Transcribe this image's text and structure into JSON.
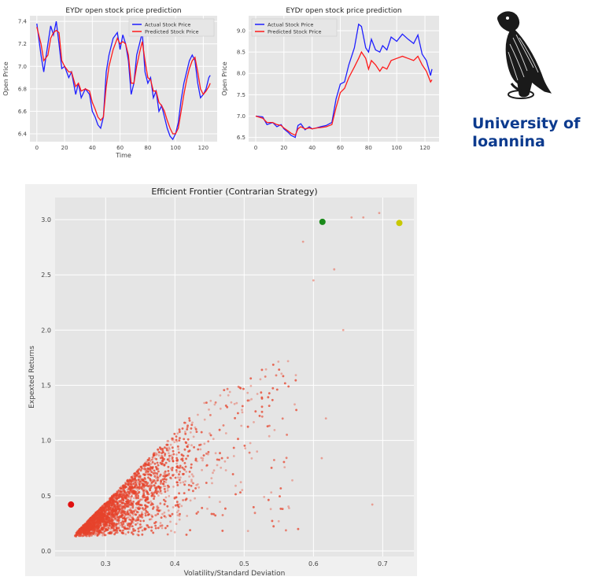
{
  "university": {
    "line1": "University of",
    "line2": "Ioannina",
    "logo_icon": "owl-on-branch-icon",
    "brand_color": "#0d3b8e"
  },
  "chart_data": [
    {
      "type": "line",
      "title": "EYDr open stock price prediction",
      "xlabel": "Time",
      "ylabel": "Open Price",
      "xlim": [
        -5,
        130
      ],
      "ylim": [
        6.33,
        7.45
      ],
      "xticks": [
        0,
        20,
        40,
        60,
        80,
        100,
        120
      ],
      "yticks": [
        6.4,
        6.6,
        6.8,
        7.0,
        7.2,
        7.4
      ],
      "ytick_labels": [
        "6.4",
        "6.6",
        "6.8",
        "7.0",
        "7.2",
        "7.4"
      ],
      "legend_position": "top-right",
      "grid": true,
      "series": [
        {
          "name": "Actual Stock Price",
          "color": "#1f1fff",
          "x": [
            0,
            3,
            5,
            8,
            10,
            12,
            14,
            16,
            18,
            20,
            23,
            25,
            28,
            30,
            32,
            35,
            38,
            40,
            42,
            44,
            46,
            48,
            50,
            52,
            55,
            58,
            60,
            62,
            64,
            66,
            68,
            70,
            72,
            74,
            76,
            78,
            80,
            82,
            84,
            86,
            88,
            90,
            92,
            94,
            96,
            98,
            100,
            102,
            104,
            106,
            108,
            110,
            112,
            114,
            116,
            118,
            120,
            122,
            124,
            125
          ],
          "y": [
            7.38,
            7.1,
            6.95,
            7.2,
            7.36,
            7.28,
            7.4,
            7.2,
            6.98,
            7.0,
            6.9,
            6.95,
            6.75,
            6.85,
            6.72,
            6.8,
            6.75,
            6.6,
            6.55,
            6.48,
            6.45,
            6.55,
            6.95,
            7.1,
            7.25,
            7.3,
            7.15,
            7.28,
            7.2,
            7.05,
            6.75,
            6.85,
            7.1,
            7.2,
            7.3,
            6.95,
            6.85,
            6.9,
            6.72,
            6.78,
            6.6,
            6.65,
            6.55,
            6.45,
            6.38,
            6.35,
            6.4,
            6.5,
            6.7,
            6.85,
            6.95,
            7.05,
            7.1,
            7.05,
            6.85,
            6.72,
            6.75,
            6.8,
            6.9,
            6.92
          ]
        },
        {
          "name": "Predicted Stock Price",
          "color": "#ff1a1a",
          "x": [
            0,
            3,
            5,
            8,
            10,
            12,
            14,
            16,
            18,
            20,
            23,
            25,
            28,
            30,
            32,
            35,
            38,
            40,
            42,
            44,
            46,
            48,
            50,
            52,
            55,
            58,
            60,
            62,
            64,
            66,
            68,
            70,
            72,
            74,
            76,
            78,
            80,
            82,
            84,
            86,
            88,
            90,
            92,
            94,
            96,
            98,
            100,
            102,
            104,
            106,
            108,
            110,
            112,
            114,
            116,
            118,
            120,
            122,
            124,
            125
          ],
          "y": [
            7.35,
            7.2,
            7.05,
            7.1,
            7.25,
            7.3,
            7.32,
            7.3,
            7.05,
            7.0,
            6.95,
            6.95,
            6.82,
            6.85,
            6.78,
            6.8,
            6.78,
            6.68,
            6.62,
            6.55,
            6.52,
            6.55,
            6.82,
            7.0,
            7.15,
            7.25,
            7.2,
            7.22,
            7.2,
            7.1,
            6.85,
            6.85,
            7.0,
            7.12,
            7.22,
            7.05,
            6.9,
            6.88,
            6.78,
            6.78,
            6.68,
            6.65,
            6.6,
            6.52,
            6.45,
            6.4,
            6.4,
            6.45,
            6.6,
            6.75,
            6.88,
            6.98,
            7.05,
            7.08,
            6.95,
            6.8,
            6.75,
            6.78,
            6.82,
            6.85
          ]
        }
      ]
    },
    {
      "type": "line",
      "title": "EYDr open stock price prediction",
      "xlabel": "",
      "ylabel": "Open Price",
      "xlim": [
        -5,
        130
      ],
      "ylim": [
        6.4,
        9.35
      ],
      "xticks": [
        0,
        20,
        40,
        60,
        80,
        100,
        120
      ],
      "yticks": [
        6.5,
        7.0,
        7.5,
        8.0,
        8.5,
        9.0
      ],
      "ytick_labels": [
        "6.5",
        "7.0",
        "7.5",
        "8.0",
        "8.5",
        "9.0"
      ],
      "legend_position": "top-left",
      "grid": true,
      "series": [
        {
          "name": "Actual Stock Price",
          "color": "#1f1fff",
          "x": [
            0,
            5,
            8,
            12,
            15,
            18,
            20,
            23,
            25,
            28,
            30,
            32,
            35,
            38,
            40,
            43,
            46,
            50,
            54,
            57,
            60,
            63,
            66,
            70,
            73,
            75,
            78,
            80,
            82,
            85,
            88,
            90,
            93,
            96,
            100,
            104,
            108,
            112,
            115,
            118,
            121,
            124,
            125
          ],
          "y": [
            7.0,
            6.98,
            6.8,
            6.85,
            6.75,
            6.8,
            6.7,
            6.62,
            6.55,
            6.5,
            6.78,
            6.82,
            6.68,
            6.75,
            6.7,
            6.72,
            6.75,
            6.78,
            6.85,
            7.4,
            7.75,
            7.8,
            8.2,
            8.6,
            9.15,
            9.1,
            8.6,
            8.5,
            8.8,
            8.55,
            8.5,
            8.65,
            8.55,
            8.85,
            8.75,
            8.92,
            8.8,
            8.7,
            8.9,
            8.45,
            8.3,
            7.95,
            8.1
          ]
        },
        {
          "name": "Predicted Stock Price",
          "color": "#ff1a1a",
          "x": [
            0,
            5,
            8,
            12,
            15,
            18,
            20,
            23,
            25,
            28,
            30,
            32,
            35,
            38,
            40,
            43,
            46,
            50,
            54,
            57,
            60,
            63,
            66,
            70,
            73,
            75,
            78,
            80,
            82,
            85,
            88,
            90,
            93,
            96,
            100,
            104,
            108,
            112,
            115,
            118,
            121,
            124,
            125
          ],
          "y": [
            7.0,
            6.95,
            6.85,
            6.85,
            6.8,
            6.78,
            6.72,
            6.65,
            6.6,
            6.55,
            6.7,
            6.75,
            6.7,
            6.72,
            6.7,
            6.72,
            6.73,
            6.75,
            6.8,
            7.2,
            7.55,
            7.65,
            7.9,
            8.15,
            8.35,
            8.5,
            8.35,
            8.1,
            8.3,
            8.2,
            8.05,
            8.15,
            8.1,
            8.3,
            8.35,
            8.4,
            8.35,
            8.3,
            8.4,
            8.2,
            8.05,
            7.8,
            7.85
          ]
        }
      ]
    },
    {
      "type": "scatter",
      "title": "Efficient Frontier (Contrarian Strategy)",
      "xlabel": "Volatility/Standard Deviation",
      "ylabel": "Expexted Returns",
      "xlim": [
        0.227,
        0.745
      ],
      "ylim": [
        -0.05,
        3.2
      ],
      "xticks": [
        0.3,
        0.4,
        0.5,
        0.6,
        0.7
      ],
      "xtick_labels": [
        "0.3",
        "0.4",
        "0.5",
        "0.6",
        "0.7"
      ],
      "yticks": [
        0.0,
        0.5,
        1.0,
        1.5,
        2.0,
        2.5,
        3.0
      ],
      "ytick_labels": [
        "0.0",
        "0.5",
        "1.0",
        "1.5",
        "2.0",
        "2.5",
        "3.0"
      ],
      "grid": true,
      "point_color": "#e8442c",
      "cloud_points": 5000,
      "cloud_description": "dense cloud bounded above by efficient frontier: return rises from about 0.15 at volatility 0.255 to about 3.0 at volatility 0.70",
      "outlier_points": [
        {
          "x": 0.643,
          "y": 2.0
        },
        {
          "x": 0.618,
          "y": 1.2
        },
        {
          "x": 0.612,
          "y": 0.84
        },
        {
          "x": 0.685,
          "y": 0.42
        },
        {
          "x": 0.655,
          "y": 3.02
        },
        {
          "x": 0.672,
          "y": 3.02
        },
        {
          "x": 0.695,
          "y": 3.06
        },
        {
          "x": 0.63,
          "y": 2.55
        },
        {
          "x": 0.6,
          "y": 2.45
        },
        {
          "x": 0.585,
          "y": 2.8
        }
      ],
      "highlighted_points": [
        {
          "label": "min_volatility",
          "x": 0.25,
          "y": 0.42,
          "color": "#e01010"
        },
        {
          "label": "max_sharpe",
          "x": 0.613,
          "y": 2.98,
          "color": "#1a8a1a"
        },
        {
          "label": "max_return",
          "x": 0.724,
          "y": 2.97,
          "color": "#c8c800"
        }
      ]
    }
  ]
}
